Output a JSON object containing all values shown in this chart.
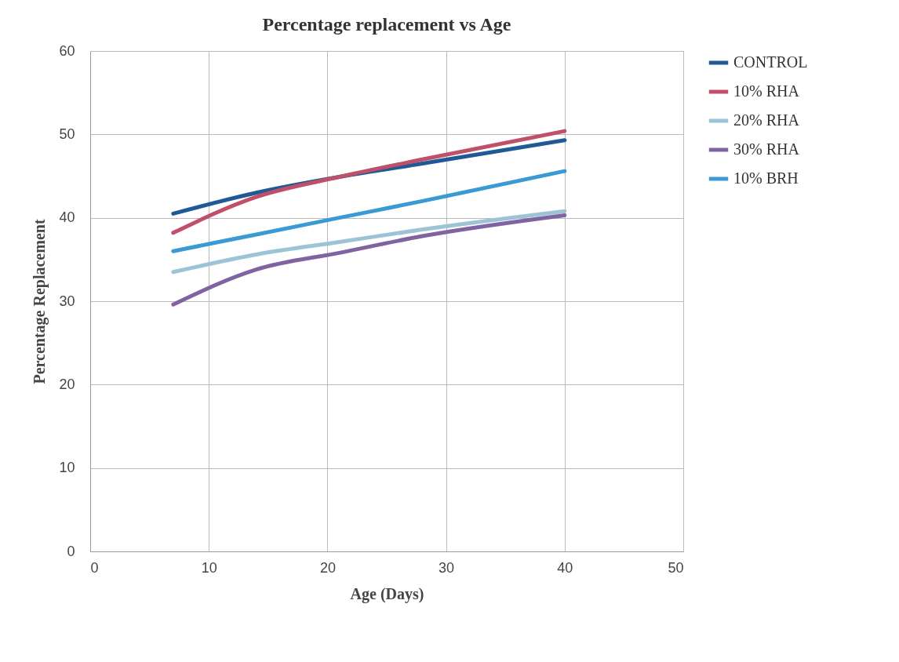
{
  "chart_data": {
    "type": "line",
    "title": "Percentage replacement vs Age",
    "xlabel": "Age (Days)",
    "ylabel": "Percentage Replacement",
    "x": [
      7,
      14,
      21,
      28,
      40
    ],
    "series": [
      {
        "name": "CONTROL",
        "color": "#1f5a96",
        "values": [
          40.5,
          43.0,
          44.9,
          46.5,
          49.3
        ]
      },
      {
        "name": "10% RHA",
        "color": "#c0506a",
        "values": [
          38.2,
          42.5,
          44.9,
          47.0,
          50.4
        ]
      },
      {
        "name": "20% RHA",
        "color": "#9dc3d6",
        "values": [
          33.5,
          35.6,
          37.1,
          38.6,
          40.8
        ]
      },
      {
        "name": "30% RHA",
        "color": "#8064a2",
        "values": [
          29.6,
          33.8,
          35.8,
          37.8,
          40.3
        ]
      },
      {
        "name": "10% BRH",
        "color": "#3a9ad4",
        "values": [
          36.0,
          38.0,
          40.0,
          42.0,
          45.6
        ]
      }
    ],
    "xlim": [
      0,
      50
    ],
    "xticks": [
      0,
      10,
      20,
      30,
      40,
      50
    ],
    "ylim": [
      0,
      60
    ],
    "yticks": [
      0,
      10,
      20,
      30,
      40,
      50,
      60
    ],
    "grid": true,
    "legend": "right",
    "marker": "none",
    "line_style": "solid"
  }
}
